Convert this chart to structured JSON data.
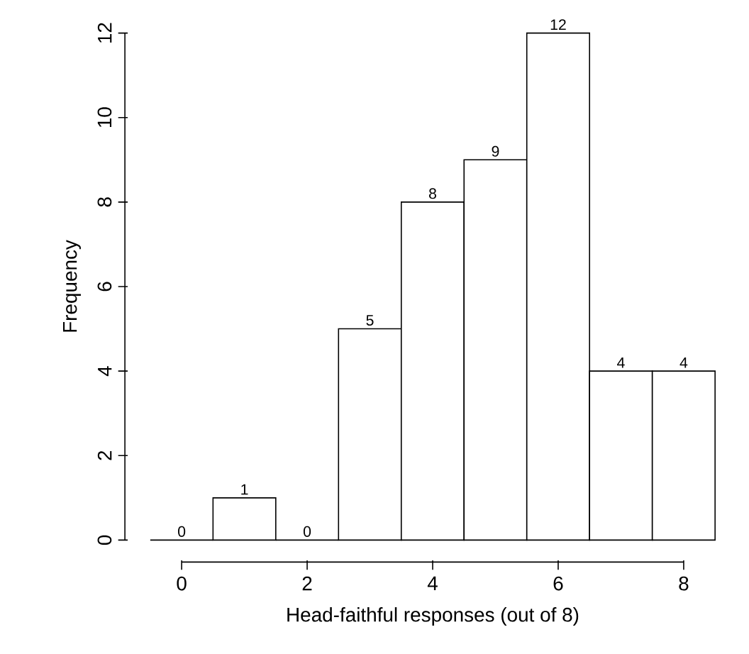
{
  "chart_data": {
    "type": "histogram",
    "xlabel": "Head-faithful responses (out of 8)",
    "ylabel": "Frequency",
    "bins": [
      -0.5,
      0.5,
      1.5,
      2.5,
      3.5,
      4.5,
      5.5,
      6.5,
      7.5,
      8.5
    ],
    "values": [
      0,
      1,
      0,
      5,
      8,
      9,
      12,
      4,
      4
    ],
    "color": "#ffffff",
    "data_labels": true,
    "xlim": [
      0,
      8
    ],
    "ylim": [
      0,
      12
    ],
    "xticks": [
      0,
      2,
      4,
      6,
      8
    ],
    "yticks": [
      0,
      2,
      4,
      6,
      8,
      10,
      12
    ]
  }
}
